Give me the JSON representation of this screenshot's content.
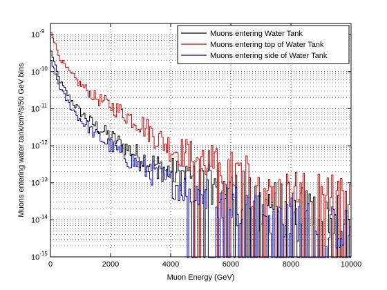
{
  "chart_data": {
    "type": "line",
    "style": "step",
    "xlabel": "Muon Energy (GeV)",
    "ylabel": "Muons entering water tank/cm²/s/50 GeV bins",
    "xlim": [
      0,
      10000
    ],
    "ylim": [
      1e-15,
      2e-09
    ],
    "yscale": "log",
    "x_ticks": [
      0,
      2000,
      4000,
      6000,
      8000,
      10000
    ],
    "x_tick_labels": [
      "0",
      "2000",
      "4000",
      "6000",
      "8000",
      "10000"
    ],
    "y_ticks": [
      1e-15,
      1e-14,
      1e-13,
      1e-12,
      1e-11,
      1e-10,
      1e-09
    ],
    "y_tick_labels": [
      {
        "base": "10",
        "exp": "-15"
      },
      {
        "base": "10",
        "exp": "-14"
      },
      {
        "base": "10",
        "exp": "-13"
      },
      {
        "base": "10",
        "exp": "-12"
      },
      {
        "base": "10",
        "exp": "-11"
      },
      {
        "base": "10",
        "exp": "-10"
      },
      {
        "base": "10",
        "exp": "-9"
      }
    ],
    "grid": "dotted, major and minor (log)",
    "legend_position": "top-right",
    "bin_width": 50,
    "series": [
      {
        "name": "Muons entering Water Tank",
        "color": "#000000",
        "points": [
          [
            25,
            3.5e-10
          ],
          [
            300,
            6e-11
          ],
          [
            600,
            2.2e-11
          ],
          [
            1000,
            8e-12
          ],
          [
            1500,
            3.5e-12
          ],
          [
            2000,
            1.8e-12
          ],
          [
            2500,
            9e-13
          ],
          [
            3000,
            5e-13
          ],
          [
            3500,
            3e-13
          ],
          [
            4000,
            2e-13
          ],
          [
            4500,
            1.5e-13
          ],
          [
            5000,
            1.1e-13
          ],
          [
            5500,
            8e-14
          ],
          [
            6000,
            6e-14
          ],
          [
            6500,
            5e-14
          ],
          [
            7000,
            4e-14
          ],
          [
            7500,
            3e-14
          ],
          [
            8000,
            2.5e-14
          ],
          [
            8500,
            2e-14
          ],
          [
            9000,
            1.5e-14
          ],
          [
            9500,
            1.2e-14
          ],
          [
            10000,
            1e-14
          ]
        ]
      },
      {
        "name": "Muons entering top of Water Tank",
        "color": "#cc0000",
        "points": [
          [
            25,
            1.2e-09
          ],
          [
            300,
            2.5e-10
          ],
          [
            600,
            1e-10
          ],
          [
            1000,
            4.5e-11
          ],
          [
            1500,
            2e-11
          ],
          [
            2000,
            1.2e-11
          ],
          [
            2500,
            7e-12
          ],
          [
            3000,
            4e-12
          ],
          [
            3500,
            1.8e-12
          ],
          [
            4000,
            9e-13
          ],
          [
            4500,
            6e-13
          ],
          [
            5000,
            4.5e-13
          ],
          [
            5500,
            3e-13
          ],
          [
            6000,
            2e-13
          ],
          [
            6500,
            1.5e-13
          ],
          [
            7000,
            1.1e-13
          ],
          [
            7500,
            9e-14
          ],
          [
            8000,
            7e-14
          ],
          [
            8500,
            6e-14
          ],
          [
            9000,
            5e-14
          ],
          [
            9500,
            4e-14
          ],
          [
            10000,
            3e-14
          ]
        ]
      },
      {
        "name": "Muons entering side of Water Tank",
        "color": "#000099",
        "points": [
          [
            25,
            2e-10
          ],
          [
            300,
            4e-11
          ],
          [
            600,
            1.4e-11
          ],
          [
            1000,
            5e-12
          ],
          [
            1500,
            2e-12
          ],
          [
            2000,
            1e-12
          ],
          [
            2500,
            5e-13
          ],
          [
            3000,
            2.8e-13
          ],
          [
            3500,
            1.6e-13
          ],
          [
            4000,
            1e-13
          ],
          [
            4500,
            7e-14
          ],
          [
            5000,
            5e-14
          ],
          [
            5500,
            3.5e-14
          ],
          [
            6000,
            2.8e-14
          ],
          [
            6500,
            2.2e-14
          ],
          [
            7000,
            1.8e-14
          ],
          [
            7500,
            1.4e-14
          ],
          [
            8000,
            1.1e-14
          ],
          [
            8500,
            9e-15
          ],
          [
            9000,
            7e-15
          ],
          [
            9500,
            6e-15
          ],
          [
            10000,
            5e-15
          ]
        ]
      }
    ]
  }
}
